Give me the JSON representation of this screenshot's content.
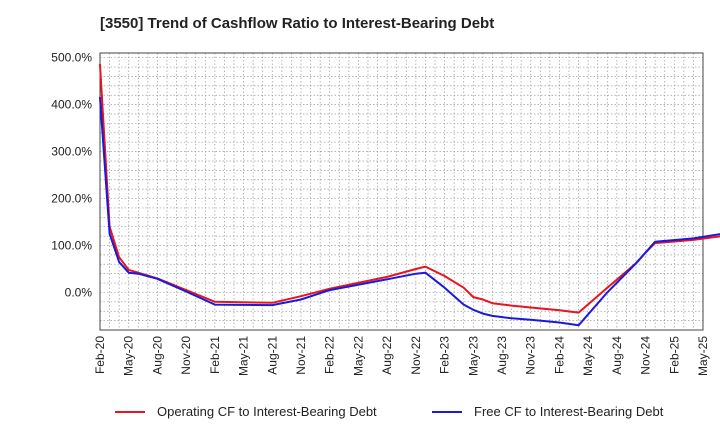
{
  "chart_data": {
    "type": "line",
    "title": "[3550]  Trend of Cashflow Ratio to Interest-Bearing Debt",
    "xlabel": "",
    "ylabel": "",
    "x_ticks": [
      "Feb-20",
      "May-20",
      "Aug-20",
      "Nov-20",
      "Feb-21",
      "May-21",
      "Aug-21",
      "Nov-21",
      "Feb-22",
      "May-22",
      "Aug-22",
      "Nov-22",
      "Feb-23",
      "May-23",
      "Aug-23",
      "Nov-23",
      "Feb-24",
      "May-24",
      "Aug-24",
      "Nov-24",
      "Feb-25",
      "May-25"
    ],
    "y_ticks": [
      "500.0%",
      "400.0%",
      "300.0%",
      "200.0%",
      "100.0%",
      "0.0%"
    ],
    "ylim": [
      -80,
      510
    ],
    "grid": true,
    "legend_position": "bottom",
    "series": [
      {
        "name": "Operating CF to Interest-Bearing Debt",
        "color": "#e8141e",
        "points": [
          [
            0,
            485
          ],
          [
            1,
            140
          ],
          [
            2,
            75
          ],
          [
            3,
            48
          ],
          [
            4,
            42
          ],
          [
            6,
            30
          ],
          [
            9,
            5
          ],
          [
            12,
            -20
          ],
          [
            18,
            -22
          ],
          [
            21,
            -8
          ],
          [
            24,
            8
          ],
          [
            30,
            33
          ],
          [
            33,
            50
          ],
          [
            34,
            55
          ],
          [
            36,
            35
          ],
          [
            38,
            10
          ],
          [
            39,
            -10
          ],
          [
            40,
            -15
          ],
          [
            41,
            -23
          ],
          [
            43,
            -28
          ],
          [
            45,
            -32
          ],
          [
            48,
            -38
          ],
          [
            50,
            -43
          ],
          [
            53,
            10
          ],
          [
            56,
            62
          ],
          [
            57,
            85
          ],
          [
            58,
            105
          ],
          [
            62,
            112
          ],
          [
            65,
            120
          ],
          [
            68,
            133
          ],
          [
            71,
            150
          ],
          [
            73,
            165
          ],
          [
            74,
            180
          ]
        ]
      },
      {
        "name": "Free CF to Interest-Bearing Debt",
        "color": "#1a1adc",
        "points": [
          [
            0,
            415
          ],
          [
            1,
            125
          ],
          [
            2,
            65
          ],
          [
            3,
            42
          ],
          [
            4,
            40
          ],
          [
            6,
            29
          ],
          [
            9,
            2
          ],
          [
            12,
            -26
          ],
          [
            18,
            -27
          ],
          [
            21,
            -15
          ],
          [
            24,
            5
          ],
          [
            30,
            28
          ],
          [
            33,
            40
          ],
          [
            34,
            42
          ],
          [
            36,
            10
          ],
          [
            38,
            -26
          ],
          [
            39,
            -37
          ],
          [
            40,
            -45
          ],
          [
            41,
            -50
          ],
          [
            43,
            -55
          ],
          [
            45,
            -58
          ],
          [
            48,
            -64
          ],
          [
            50,
            -70
          ],
          [
            53,
            0
          ],
          [
            56,
            62
          ],
          [
            57,
            85
          ],
          [
            58,
            108
          ],
          [
            62,
            115
          ],
          [
            65,
            125
          ],
          [
            68,
            135
          ],
          [
            71,
            150
          ],
          [
            73,
            162
          ],
          [
            74,
            175
          ]
        ]
      }
    ]
  }
}
